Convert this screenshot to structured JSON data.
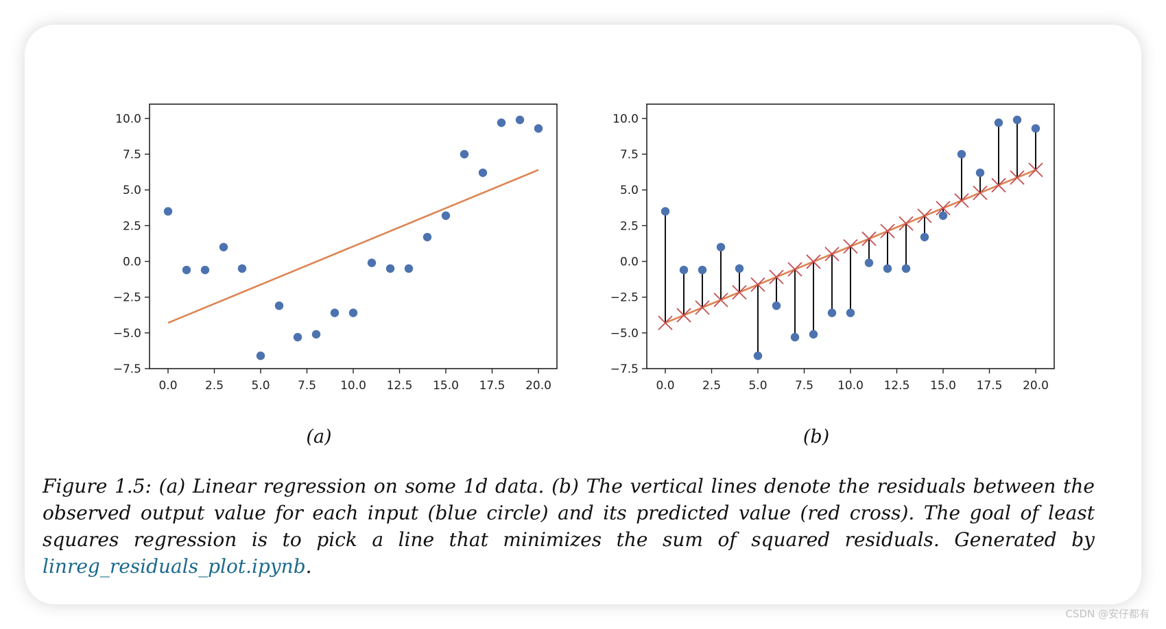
{
  "figure": {
    "panel_a_label": "(a)",
    "panel_b_label": "(b)",
    "caption": {
      "text": "Figure 1.5: (a) Linear regression on some 1d data. (b) The vertical lines denote the residuals between the observed output value for each input (blue circle) and its predicted value (red cross). The goal of least squares regression is to pick a line that minimizes the sum of squared residuals. Generated by ",
      "link_text": "linreg_residuals_plot.ipynb",
      "end": "."
    }
  },
  "watermark": "CSDN @安仔都有",
  "colors": {
    "points": "#4c72b0",
    "fit_line": "#dd8452",
    "crosses": "#c44e52",
    "residuals": "#111111",
    "link": "#1b6a8c"
  },
  "chart_data": [
    {
      "type": "scatter",
      "title": "",
      "xlabel": "",
      "ylabel": "",
      "xlim": [
        -1,
        21
      ],
      "ylim": [
        -7.5,
        11
      ],
      "xticks": [
        0.0,
        2.5,
        5.0,
        7.5,
        10.0,
        12.5,
        15.0,
        17.5,
        20.0
      ],
      "yticks": [
        -7.5,
        -5.0,
        -2.5,
        0.0,
        2.5,
        5.0,
        7.5,
        10.0
      ],
      "xtick_labels": [
        "0.0",
        "2.5",
        "5.0",
        "7.5",
        "10.0",
        "12.5",
        "15.0",
        "17.5",
        "20.0"
      ],
      "ytick_labels": [
        "−7.5",
        "−5.0",
        "−2.5",
        "0.0",
        "2.5",
        "5.0",
        "7.5",
        "10.0"
      ],
      "grid": false,
      "x": [
        0,
        1,
        2,
        3,
        4,
        5,
        6,
        7,
        8,
        9,
        10,
        11,
        12,
        13,
        14,
        15,
        16,
        17,
        18,
        19,
        20
      ],
      "y": [
        3.5,
        -0.6,
        -0.6,
        1.0,
        -0.5,
        -6.6,
        -3.1,
        -5.3,
        -5.1,
        -3.6,
        -3.6,
        -0.1,
        -0.5,
        -0.5,
        1.7,
        3.2,
        7.5,
        6.2,
        9.7,
        9.9,
        9.3
      ],
      "fit_line": {
        "x": [
          0,
          20
        ],
        "y": [
          -4.3,
          6.4
        ]
      }
    },
    {
      "type": "scatter",
      "title": "",
      "xlabel": "",
      "ylabel": "",
      "xlim": [
        -1,
        21
      ],
      "ylim": [
        -7.5,
        11
      ],
      "xticks": [
        0.0,
        2.5,
        5.0,
        7.5,
        10.0,
        12.5,
        15.0,
        17.5,
        20.0
      ],
      "yticks": [
        -7.5,
        -5.0,
        -2.5,
        0.0,
        2.5,
        5.0,
        7.5,
        10.0
      ],
      "xtick_labels": [
        "0.0",
        "2.5",
        "5.0",
        "7.5",
        "10.0",
        "12.5",
        "15.0",
        "17.5",
        "20.0"
      ],
      "ytick_labels": [
        "−7.5",
        "−5.0",
        "−2.5",
        "0.0",
        "2.5",
        "5.0",
        "7.5",
        "10.0"
      ],
      "grid": false,
      "x": [
        0,
        1,
        2,
        3,
        4,
        5,
        6,
        7,
        8,
        9,
        10,
        11,
        12,
        13,
        14,
        15,
        16,
        17,
        18,
        19,
        20
      ],
      "y": [
        3.5,
        -0.6,
        -0.6,
        1.0,
        -0.5,
        -6.6,
        -3.1,
        -5.3,
        -5.1,
        -3.6,
        -3.6,
        -0.1,
        -0.5,
        -0.5,
        1.7,
        3.2,
        7.5,
        6.2,
        9.7,
        9.9,
        9.3
      ],
      "fit_line": {
        "x": [
          0,
          20
        ],
        "y": [
          -4.3,
          6.4
        ]
      },
      "residuals": true,
      "predicted_markers": "cross"
    }
  ]
}
